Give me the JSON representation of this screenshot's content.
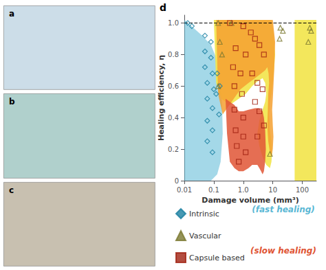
{
  "chart_data": {
    "type": "scatter",
    "xlabel": "Damage volume (mm³)",
    "ylabel": "Healing efficiency, η",
    "log": "x",
    "xlim": [
      0.01,
      300
    ],
    "ylim": [
      0.0,
      1.05
    ],
    "xticks": [
      0.01,
      0.1,
      {
        "value": 1.0,
        "label": "1.0"
      },
      10,
      100
    ],
    "yticks": [
      0,
      0.2,
      0.4,
      0.6,
      0.8,
      {
        "value": 1.0,
        "label": "1.0"
      }
    ],
    "grid": false,
    "legend": "bottom",
    "regions": [
      {
        "color": "#5ab8d5",
        "x": [
          0.01,
          0.01,
          0.014,
          0.02,
          0.04,
          0.08,
          0.13,
          0.17,
          0.2,
          0.19,
          0.16,
          0.12,
          0.08,
          0.04,
          0.02,
          0.01
        ],
        "y": [
          1.02,
          0.0,
          0.0,
          0.0,
          0.0,
          0.0,
          0.04,
          0.12,
          0.3,
          0.5,
          0.65,
          0.78,
          0.86,
          0.92,
          0.97,
          1.02
        ]
      },
      {
        "color": "#f2e44a",
        "x": [
          0.1,
          0.14,
          0.2,
          0.35,
          0.6,
          1.0,
          2.0,
          4.0,
          7.0,
          9.0,
          10.5,
          12.0,
          11.0,
          10.0,
          9.0,
          8.0,
          7.5,
          8.0,
          9.0,
          9.5,
          9.0,
          8.0,
          6.0,
          4.5,
          3.5,
          3.0,
          3.5,
          4.5,
          5.5,
          6.0,
          5.5,
          4.5,
          3.0,
          2.0,
          1.2,
          0.7,
          0.35,
          0.18,
          0.12,
          0.1
        ],
        "y": [
          1.02,
          1.02,
          1.02,
          1.02,
          1.02,
          1.02,
          1.02,
          1.02,
          1.02,
          1.02,
          0.95,
          0.8,
          0.7,
          0.62,
          0.55,
          0.5,
          0.42,
          0.32,
          0.25,
          0.18,
          0.12,
          0.08,
          0.1,
          0.15,
          0.22,
          0.3,
          0.38,
          0.45,
          0.5,
          0.55,
          0.62,
          0.65,
          0.63,
          0.6,
          0.55,
          0.52,
          0.48,
          0.52,
          0.62,
          1.02
        ]
      },
      {
        "color": "#f2e44a",
        "x": [
          55,
          55,
          60,
          70,
          100,
          180,
          300,
          300,
          55
        ],
        "y": [
          1.02,
          0.0,
          0.0,
          0.0,
          0.0,
          0.0,
          0.0,
          1.02,
          1.02
        ]
      },
      {
        "color": "#f5a030",
        "x": [
          0.12,
          0.17,
          0.25,
          0.45,
          0.8,
          1.5,
          3.0,
          5.5,
          8.0,
          10.0,
          12.0,
          11.5,
          11.0,
          10.5,
          10.0,
          9.5,
          10.0,
          10.5,
          10.0,
          9.0,
          8.0,
          7.0,
          6.5,
          6.8,
          7.0,
          7.5,
          7.2,
          6.5,
          5.5,
          4.0,
          2.5,
          1.5,
          0.8,
          0.4,
          0.2,
          0.14,
          0.12
        ],
        "y": [
          1.02,
          1.02,
          1.02,
          1.02,
          1.02,
          1.02,
          1.02,
          1.02,
          1.02,
          1.02,
          0.88,
          0.78,
          0.68,
          0.6,
          0.52,
          0.45,
          0.35,
          0.28,
          0.2,
          0.15,
          0.18,
          0.25,
          0.35,
          0.45,
          0.55,
          0.62,
          0.68,
          0.72,
          0.7,
          0.68,
          0.65,
          0.62,
          0.58,
          0.5,
          0.42,
          0.55,
          1.02
        ]
      },
      {
        "color": "#e05535",
        "x": [
          0.25,
          0.35,
          0.5,
          0.7,
          1.0,
          1.5,
          2.5,
          3.5,
          4.5,
          5.0,
          5.5,
          5.8,
          5.5,
          5.0,
          4.5,
          4.0,
          3.5,
          3.0,
          2.5,
          2.0,
          1.5,
          1.0,
          0.7,
          0.5,
          0.35,
          0.28,
          0.25
        ],
        "y": [
          0.52,
          0.5,
          0.48,
          0.44,
          0.44,
          0.45,
          0.46,
          0.46,
          0.44,
          0.4,
          0.32,
          0.2,
          0.12,
          0.06,
          0.04,
          0.06,
          0.08,
          0.1,
          0.1,
          0.1,
          0.08,
          0.06,
          0.06,
          0.08,
          0.12,
          0.3,
          0.52
        ]
      }
    ],
    "hlines": [
      {
        "y": 1.0,
        "line_style": "dashed",
        "color": "#000000"
      }
    ],
    "series": [
      {
        "name": "Intrinsic",
        "marker": "diamond",
        "color": "#1a7fa0",
        "points": [
          [
            0.013,
            1.0
          ],
          [
            0.018,
            0.98
          ],
          [
            0.05,
            0.92
          ],
          [
            0.08,
            0.88
          ],
          [
            0.05,
            0.82
          ],
          [
            0.08,
            0.78
          ],
          [
            0.05,
            0.72
          ],
          [
            0.09,
            0.68
          ],
          [
            0.06,
            0.62
          ],
          [
            0.1,
            0.58
          ],
          [
            0.06,
            0.52
          ],
          [
            0.09,
            0.46
          ],
          [
            0.06,
            0.38
          ],
          [
            0.09,
            0.32
          ],
          [
            0.06,
            0.25
          ],
          [
            0.09,
            0.18
          ],
          [
            0.12,
            0.55
          ],
          [
            0.15,
            0.42
          ],
          [
            0.13,
            0.68
          ],
          [
            0.16,
            0.6
          ]
        ]
      },
      {
        "name": "Vascular",
        "marker": "triangle",
        "color": "#7a7830",
        "points": [
          [
            0.14,
            1.0
          ],
          [
            0.4,
            1.0
          ],
          [
            0.16,
            0.88
          ],
          [
            0.19,
            0.8
          ],
          [
            0.14,
            0.6
          ],
          [
            8.0,
            0.17
          ],
          [
            18,
            0.97
          ],
          [
            22,
            0.95
          ],
          [
            17,
            0.9
          ],
          [
            180,
            0.97
          ],
          [
            200,
            0.95
          ],
          [
            160,
            0.88
          ]
        ]
      },
      {
        "name": "Capsule based",
        "marker": "square",
        "color": "#a02010",
        "points": [
          [
            0.35,
            1.0
          ],
          [
            1.0,
            0.98
          ],
          [
            1.8,
            0.94
          ],
          [
            0.55,
            0.84
          ],
          [
            1.2,
            0.8
          ],
          [
            2.5,
            0.9
          ],
          [
            3.5,
            0.86
          ],
          [
            5.0,
            0.8
          ],
          [
            0.45,
            0.72
          ],
          [
            0.8,
            0.68
          ],
          [
            0.5,
            0.6
          ],
          [
            0.9,
            0.55
          ],
          [
            2.0,
            0.68
          ],
          [
            3.0,
            0.62
          ],
          [
            4.5,
            0.58
          ],
          [
            0.5,
            0.45
          ],
          [
            1.0,
            0.4
          ],
          [
            0.55,
            0.32
          ],
          [
            1.0,
            0.28
          ],
          [
            0.6,
            0.22
          ],
          [
            1.2,
            0.18
          ],
          [
            0.7,
            0.12
          ],
          [
            2.5,
            0.5
          ],
          [
            3.5,
            0.44
          ],
          [
            5.0,
            0.35
          ],
          [
            3.0,
            0.28
          ]
        ]
      }
    ],
    "annotations": [
      {
        "text": "(fast healing)",
        "color": "#5ab8d5"
      },
      {
        "text": "(slow healing)",
        "color": "#e05535"
      }
    ],
    "panel_labels": [
      "a",
      "b",
      "c",
      "d"
    ]
  }
}
